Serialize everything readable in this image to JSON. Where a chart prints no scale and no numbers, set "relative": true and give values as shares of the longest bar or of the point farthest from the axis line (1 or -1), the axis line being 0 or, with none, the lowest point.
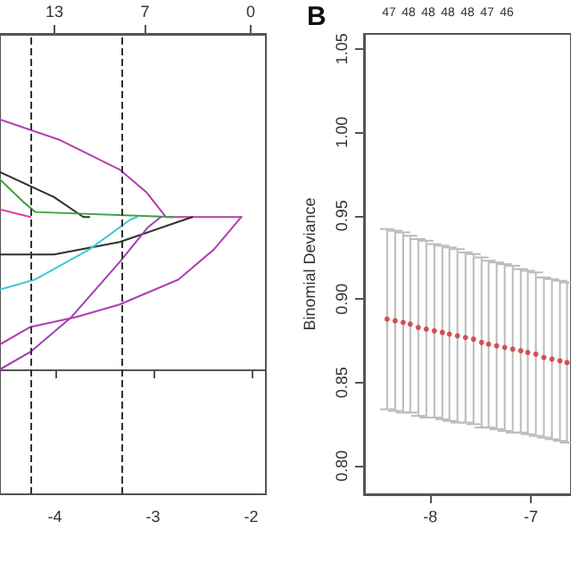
{
  "chart_data": [
    {
      "type": "line",
      "relative": true,
      "xlim": [
        -4.56,
        -1.85
      ],
      "xticks": [
        -4,
        -3,
        -2
      ],
      "x2lim": [
        16.6,
        -1.0
      ],
      "x2ticks": [
        13,
        7,
        0
      ],
      "grid": false,
      "marker": "none",
      "line_style": "solid",
      "series": [
        {
          "color": "#b040b0",
          "x": [
            -4.56,
            -3.96,
            -3.34,
            -3.07,
            -2.87,
            -2.1
          ],
          "values": [
            1,
            0.92,
            0.8,
            0.71,
            0.61,
            0.61
          ]
        },
        {
          "color": "#303030",
          "x": [
            -4.56,
            -4.01,
            -3.71,
            -3.65
          ],
          "values": [
            0.79,
            0.69,
            0.61,
            0.61
          ]
        },
        {
          "color": "#40a040",
          "x": [
            -4.56,
            -4.32,
            -4.2,
            -2.8
          ],
          "values": [
            0.76,
            0.67,
            0.63,
            0.61
          ]
        },
        {
          "color": "#e040a0",
          "x": [
            -4.56,
            -4.25
          ],
          "values": [
            0.64,
            0.61
          ]
        },
        {
          "color": "#303030",
          "x": [
            -4.56,
            -4.01,
            -3.34,
            -2.6
          ],
          "values": [
            0.46,
            0.46,
            0.51,
            0.61
          ]
        },
        {
          "color": "#40c8d0",
          "x": [
            -4.56,
            -4.2,
            -3.65,
            -3.23,
            -3.16
          ],
          "values": [
            0.32,
            0.36,
            0.48,
            0.6,
            0.61
          ]
        },
        {
          "color": "#b040b0",
          "x": [
            -4.56,
            -4.25,
            -3.78,
            -3.34,
            -2.74,
            -2.38,
            -2.1
          ],
          "values": [
            0.1,
            0.17,
            0.21,
            0.26,
            0.36,
            0.48,
            0.61
          ]
        },
        {
          "color": "#a040b0",
          "x": [
            -4.56,
            -4.25,
            -3.83,
            -3.34,
            -3.05,
            -2.92
          ],
          "values": [
            0,
            0.07,
            0.21,
            0.43,
            0.57,
            0.61
          ]
        }
      ],
      "ref_lines": [
        {
          "axis": "x",
          "value": -4.25,
          "color": "#333333",
          "line_style": "dashed"
        },
        {
          "axis": "x",
          "value": -3.31,
          "color": "#333333",
          "line_style": "dashed"
        }
      ]
    },
    {
      "type": "scatter",
      "ylabel": "Binomial Deviance",
      "annotations": [
        "B",
        "47",
        "48",
        "48",
        "48",
        "48",
        "47",
        "46"
      ],
      "marker": "circle",
      "grid": false,
      "xlim": [
        -8.66,
        -6.6
      ],
      "xticks": [
        -8,
        -7
      ],
      "ylim": [
        0.783,
        1.059
      ],
      "yticks": [
        {
          "value": 0.8,
          "label": "0.80"
        },
        {
          "value": 0.85,
          "label": "0.85"
        },
        {
          "value": 0.9,
          "label": "0.90"
        },
        {
          "value": 0.95,
          "label": "0.95"
        },
        {
          "value": 1,
          "label": "1.00"
        },
        {
          "value": 1.05,
          "label": "1.05"
        }
      ],
      "series": [
        {
          "color": "#d03030",
          "x": [
            -8.43,
            -8.35,
            -8.27,
            -8.2,
            -8.12,
            -8.04,
            -7.96,
            -7.88,
            -7.81,
            -7.73,
            -7.65,
            -7.57,
            -7.49,
            -7.42,
            -7.34,
            -7.26,
            -7.18,
            -7.1,
            -7.03,
            -6.95,
            -6.87,
            -6.79,
            -6.71,
            -6.64
          ],
          "values": [
            0.888,
            0.887,
            0.886,
            0.885,
            0.883,
            0.882,
            0.881,
            0.88,
            0.879,
            0.878,
            0.877,
            0.876,
            0.874,
            0.873,
            0.872,
            0.871,
            0.87,
            0.869,
            0.868,
            0.867,
            0.865,
            0.864,
            0.863,
            0.862
          ],
          "errors": [
            0.054,
            0.054,
            0.054,
            0.053,
            0.053,
            0.053,
            0.052,
            0.052,
            0.052,
            0.052,
            0.051,
            0.051,
            0.051,
            0.05,
            0.05,
            0.05,
            0.05,
            0.049,
            0.049,
            0.049,
            0.048,
            0.048,
            0.048,
            0.048
          ]
        }
      ]
    }
  ]
}
